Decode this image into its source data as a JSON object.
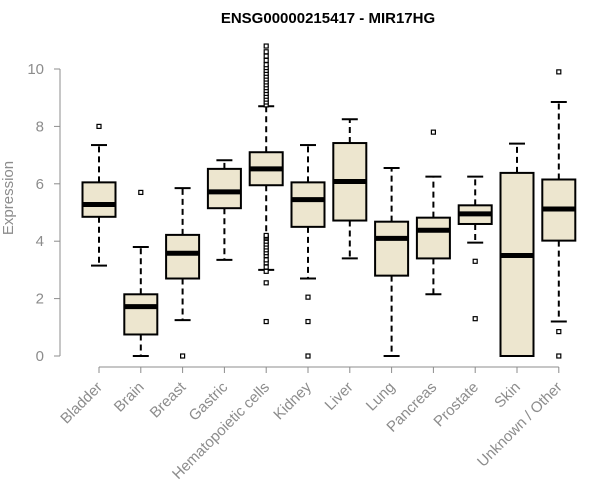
{
  "chart_data": {
    "type": "boxplot",
    "title": "ENSG00000215417 - MIR17HG",
    "xlabel": "",
    "ylabel": "Expression",
    "ylim": [
      0,
      10
    ],
    "yticks": [
      0,
      2,
      4,
      6,
      8,
      10
    ],
    "box_fill": "#ede6cf",
    "categories": [
      "Bladder",
      "Brain",
      "Breast",
      "Gastric",
      "Hematopoietic cells",
      "Kidney",
      "Liver",
      "Lung",
      "Pancreas",
      "Prostate",
      "Skin",
      "Unknown / Other"
    ],
    "boxes": [
      {
        "category": "Bladder",
        "whisker_low": 3.15,
        "q1": 4.85,
        "median": 5.28,
        "q3": 6.05,
        "whisker_high": 7.35,
        "outliers": [
          8.0
        ]
      },
      {
        "category": "Brain",
        "whisker_low": 0.0,
        "q1": 0.75,
        "median": 1.72,
        "q3": 2.15,
        "whisker_high": 3.8,
        "outliers": [
          5.7
        ]
      },
      {
        "category": "Breast",
        "whisker_low": 1.25,
        "q1": 2.7,
        "median": 3.58,
        "q3": 4.22,
        "whisker_high": 5.85,
        "outliers": [
          0.0
        ]
      },
      {
        "category": "Gastric",
        "whisker_low": 3.35,
        "q1": 5.15,
        "median": 5.72,
        "q3": 6.52,
        "whisker_high": 6.82,
        "outliers": []
      },
      {
        "category": "Hematopoietic cells",
        "whisker_low": 3.0,
        "q1": 5.95,
        "median": 6.52,
        "q3": 7.1,
        "whisker_high": 8.7,
        "outliers": [
          1.2,
          2.55,
          2.95,
          3.1,
          3.25,
          3.35,
          3.5,
          3.6,
          3.7,
          3.8,
          3.9,
          4.0,
          4.1,
          4.15,
          4.2,
          8.75,
          8.85,
          8.95,
          9.05,
          9.15,
          9.25,
          9.35,
          9.45,
          9.55,
          9.65,
          9.75,
          9.85,
          9.95,
          10.05,
          10.15,
          10.3,
          10.45,
          10.6,
          10.8
        ]
      },
      {
        "category": "Kidney",
        "whisker_low": 2.7,
        "q1": 4.5,
        "median": 5.45,
        "q3": 6.05,
        "whisker_high": 7.35,
        "outliers": [
          2.05,
          1.2,
          0.0
        ]
      },
      {
        "category": "Liver",
        "whisker_low": 3.4,
        "q1": 4.72,
        "median": 6.08,
        "q3": 7.42,
        "whisker_high": 8.25,
        "outliers": []
      },
      {
        "category": "Lung",
        "whisker_low": 0.0,
        "q1": 2.8,
        "median": 4.1,
        "q3": 4.68,
        "whisker_high": 6.55,
        "outliers": []
      },
      {
        "category": "Pancreas",
        "whisker_low": 2.15,
        "q1": 3.4,
        "median": 4.38,
        "q3": 4.82,
        "whisker_high": 6.25,
        "outliers": [
          7.8
        ]
      },
      {
        "category": "Prostate",
        "whisker_low": 3.95,
        "q1": 4.6,
        "median": 4.95,
        "q3": 5.25,
        "whisker_high": 6.25,
        "outliers": [
          3.3,
          1.3
        ]
      },
      {
        "category": "Skin",
        "whisker_low": 0.0,
        "q1": 0.0,
        "median": 3.5,
        "q3": 6.38,
        "whisker_high": 7.4,
        "outliers": []
      },
      {
        "category": "Unknown / Other",
        "whisker_low": 1.2,
        "q1": 4.02,
        "median": 5.12,
        "q3": 6.15,
        "whisker_high": 8.85,
        "outliers": [
          9.9,
          0.85,
          0.0
        ]
      }
    ]
  }
}
